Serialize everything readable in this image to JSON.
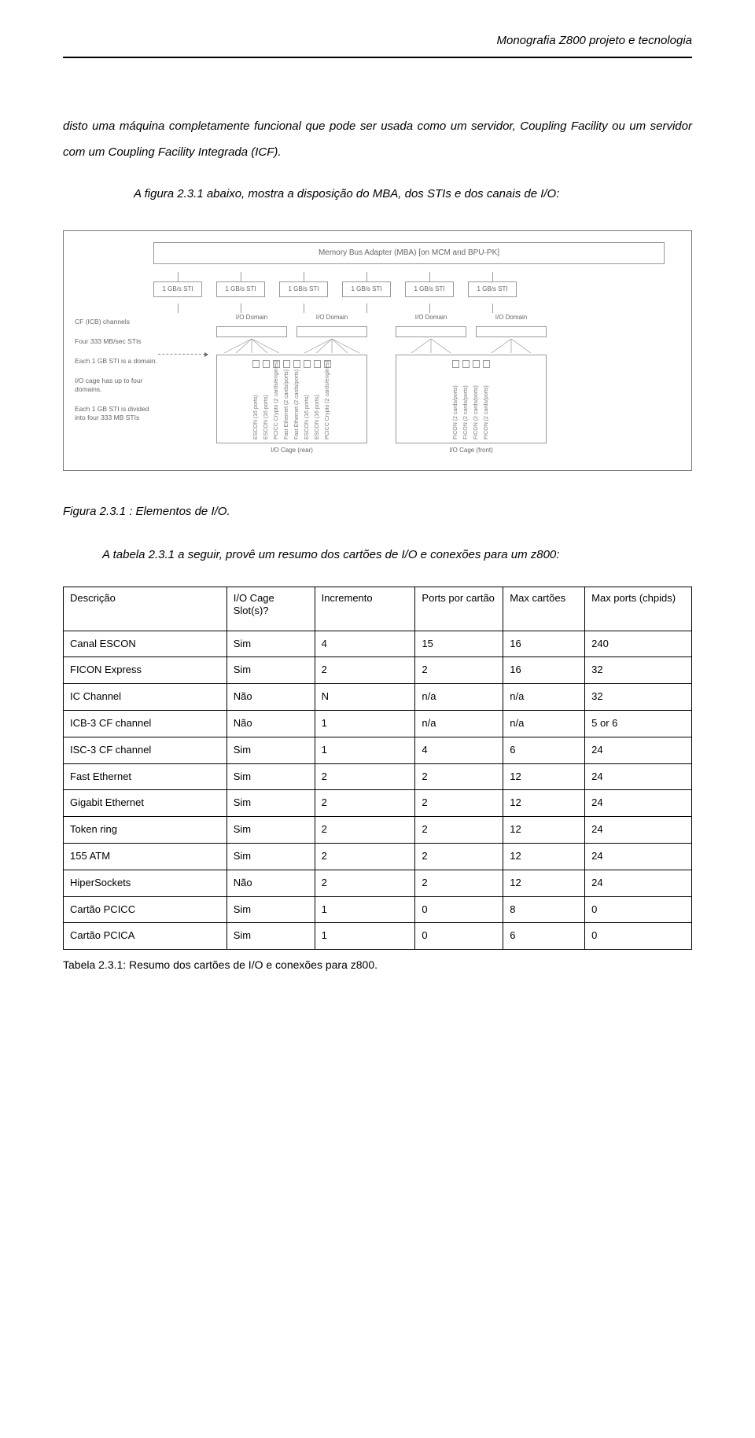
{
  "header": {
    "title": "Monografia Z800 projeto e tecnologia"
  },
  "para1": "disto uma máquina completamente funcional que  pode ser usada como um servidor, Coupling Facility  ou um servidor com  um Coupling Facility Integrada (ICF).",
  "para2": "A figura 2.3.1 abaixo, mostra a disposição do MBA, dos STIs e dos canais de I/O:",
  "diagram": {
    "mba_label": "Memory Bus Adapter (MBA) [on MCM and BPU-PK]",
    "sti_label": "1 GB/s STI",
    "sti_count": 6,
    "left_labels": [
      "CF (ICB) channels",
      "Four 333 MB/sec STIs",
      "Each 1 GB STI is a domain.",
      "I/O cage has up to four domains.",
      "Each 1 GB STI is divided into four 333 MB STIs"
    ],
    "domain_label": "I/O Domain",
    "cage_rear_label": "I/O Cage (rear)",
    "cage_front_label": "I/O Cage (front)",
    "rear_cards": [
      "ESCON (16 ports)",
      "ESCON (16 ports)",
      "PCICC Crypto (2 cards/engines)",
      "Fast Ethernet (2 cards/ports)",
      "Fast Ethernet (2 cards/ports)",
      "ESCON (16 ports)",
      "ESCON (16 ports)",
      "PCICC Crypto (2 cards/engines)"
    ],
    "front_cards": [
      "FICON (2 cards/ports)",
      "FICON (2 cards/ports)",
      "FICON (2 cards/ports)",
      "FICON (2 cards/ports)"
    ]
  },
  "fig_caption": "Figura 2.3.1 : Elementos de I/O.",
  "para3": "A tabela 2.3.1 a seguir, provê um resumo dos cartões de I/O e conexões para um z800:",
  "table": {
    "columns": [
      "Descrição",
      "I/O Cage Slot(s)?",
      "Incremento",
      "Ports por cartão",
      "Max cartões",
      "Max ports (chpids)"
    ],
    "rows": [
      [
        "Canal ESCON",
        "Sim",
        "4",
        "15",
        "16",
        "240"
      ],
      [
        "FICON Express",
        "Sim",
        "2",
        "2",
        "16",
        "32"
      ],
      [
        "IC Channel",
        "Não",
        "N",
        "n/a",
        "n/a",
        "32"
      ],
      [
        "ICB-3 CF channel",
        "Não",
        "1",
        "n/a",
        "n/a",
        "5 or 6"
      ],
      [
        "ISC-3 CF channel",
        "Sim",
        "1",
        "4",
        "6",
        "24"
      ],
      [
        "Fast Ethernet",
        "Sim",
        "2",
        "2",
        "12",
        "24"
      ],
      [
        "Gigabit Ethernet",
        "Sim",
        "2",
        "2",
        "12",
        "24"
      ],
      [
        "Token ring",
        "Sim",
        "2",
        "2",
        "12",
        "24"
      ],
      [
        "155 ATM",
        "Sim",
        "2",
        "2",
        "12",
        "24"
      ],
      [
        "HiperSockets",
        "Não",
        "2",
        "2",
        "12",
        "24"
      ],
      [
        "Cartão PCICC",
        "Sim",
        "1",
        "0",
        "8",
        "0"
      ],
      [
        "Cartão PCICA",
        "Sim",
        "1",
        "0",
        "6",
        "0"
      ]
    ],
    "col_widths": [
      "26%",
      "14%",
      "16%",
      "14%",
      "13%",
      "17%"
    ]
  },
  "table_caption": "Tabela 2.3.1: Resumo dos cartões de I/O e conexões para z800."
}
